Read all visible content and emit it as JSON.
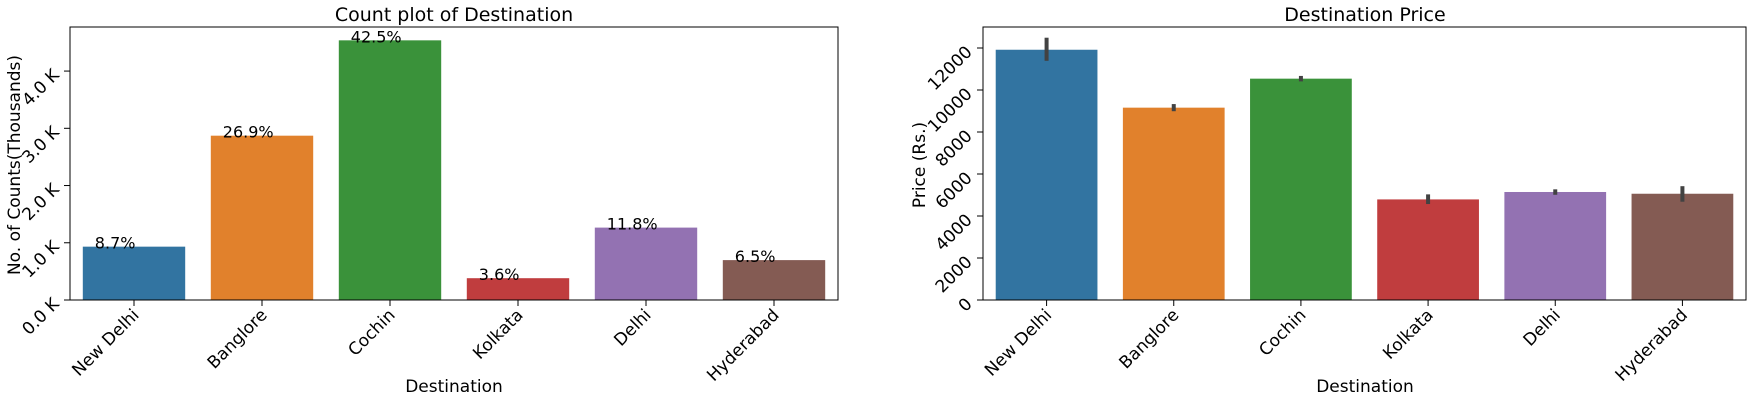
{
  "colors": {
    "New Delhi": "#3274a1",
    "Banglore": "#e1812c",
    "Cochin": "#3a923a",
    "Kolkata": "#c03d3e",
    "Delhi": "#9372b2",
    "Hyderabad": "#845b53",
    "errorbar": "#424242"
  },
  "chart_data": [
    {
      "type": "bar",
      "title": "Count plot of Destination",
      "xlabel": "Destination",
      "ylabel": "No. of Counts(Thousands)",
      "categories": [
        "New Delhi",
        "Banglore",
        "Cochin",
        "Kolkata",
        "Delhi",
        "Hyderabad"
      ],
      "values": [
        932,
        2871,
        4537,
        381,
        1265,
        697
      ],
      "data_labels": [
        "8.7%",
        "26.9%",
        "42.5%",
        "3.6%",
        "11.8%",
        "6.5%"
      ],
      "ylim": [
        0,
        4770
      ],
      "yticks": [
        0,
        1000,
        2000,
        3000,
        4000
      ],
      "ytick_labels": [
        "0.0 K",
        "1.0 K",
        "2.0 K",
        "3.0 K",
        "4.0 K"
      ],
      "grid": false,
      "legend": "none"
    },
    {
      "type": "bar",
      "title": "Destination Price",
      "xlabel": "Destination",
      "ylabel": "Price (Rs.)",
      "categories": [
        "New Delhi",
        "Banglore",
        "Cochin",
        "Kolkata",
        "Delhi",
        "Hyderabad"
      ],
      "values": [
        11917,
        9159,
        10540,
        4790,
        5143,
        5060
      ],
      "error_low": [
        11390,
        8990,
        10410,
        4570,
        5010,
        4680
      ],
      "error_high": [
        12490,
        9330,
        10670,
        5030,
        5270,
        5420
      ],
      "ylim": [
        0,
        13000
      ],
      "yticks": [
        0,
        2000,
        4000,
        6000,
        8000,
        10000,
        12000
      ],
      "ytick_labels": [
        "0",
        "2000",
        "4000",
        "6000",
        "8000",
        "10000",
        "12000"
      ],
      "grid": false,
      "legend": "none"
    }
  ]
}
